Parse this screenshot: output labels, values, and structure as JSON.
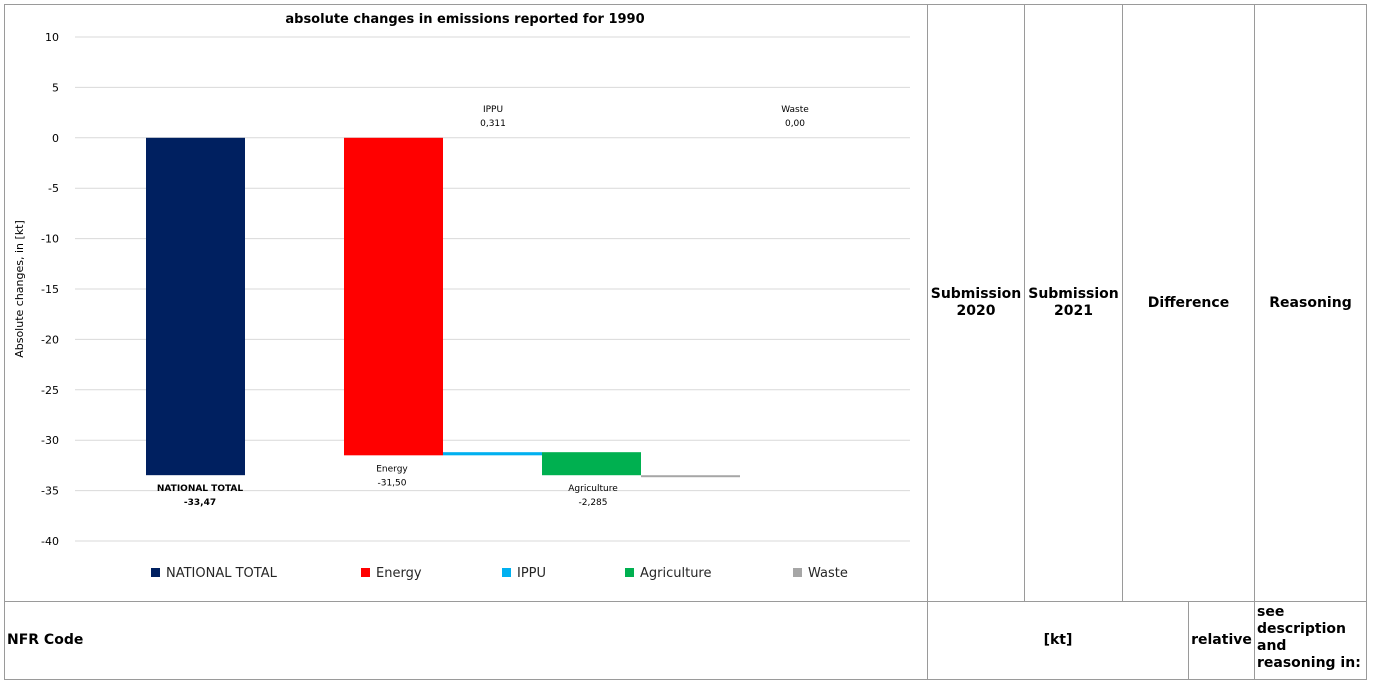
{
  "table": {
    "header_row1": {
      "submission_2020": "Submission 2020",
      "submission_2021": "Submission 2021",
      "difference": "Difference",
      "reasoning": "Reasoning"
    },
    "header_row2": {
      "nfr_code": "NFR Code",
      "kt": "[kt]",
      "relative": "relative",
      "see_description": "see description and reasoning in:"
    }
  },
  "chart_data": {
    "type": "bar",
    "title": "absolute changes in emissions reported for 1990",
    "ylabel": "Absolute changes, in [kt]",
    "xlabel": "",
    "ylim": [
      -40,
      10
    ],
    "yticks": [
      10,
      5,
      0,
      -5,
      -10,
      -15,
      -20,
      -25,
      -30,
      -35,
      -40
    ],
    "grid": true,
    "legend_position": "bottom",
    "categories": [
      "NATIONAL TOTAL",
      "Energy",
      "IPPU",
      "Agriculture",
      "Waste"
    ],
    "values": [
      -33.47,
      -31.5,
      0.311,
      -2.285,
      0.0
    ],
    "data_labels": [
      {
        "name": "NATIONAL TOTAL",
        "value": "-33,47"
      },
      {
        "name": "Energy",
        "value": "-31,50"
      },
      {
        "name": "IPPU",
        "value": "0,311"
      },
      {
        "name": "Agriculture",
        "value": "-2,285"
      },
      {
        "name": "Waste",
        "value": "0,00"
      }
    ],
    "colors": [
      "#002060",
      "#ff0000",
      "#00b0f0",
      "#00b050",
      "#a6a6a6"
    ]
  }
}
